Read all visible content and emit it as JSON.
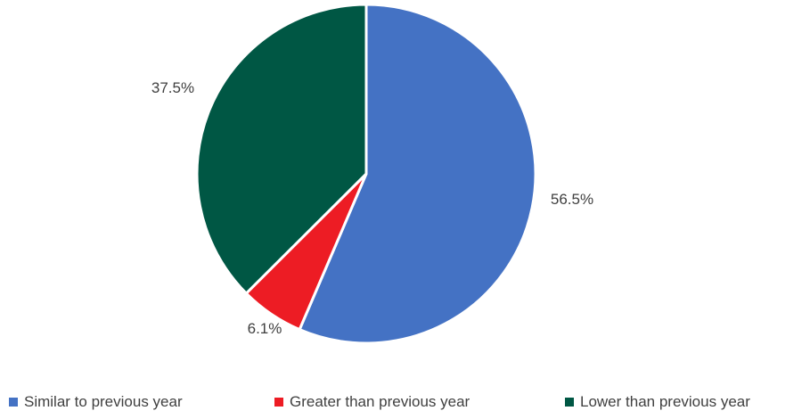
{
  "chart_data": {
    "type": "pie",
    "title": "",
    "categories": [
      "Similar to previous year",
      "Greater than previous year",
      "Lower than previous year"
    ],
    "values": [
      56.5,
      6.1,
      37.5
    ],
    "value_labels": [
      "56.5%",
      "6.1%",
      "37.5%"
    ],
    "colors": [
      "#4472C4",
      "#ED1C24",
      "#005744"
    ],
    "start_angle_deg": 0,
    "direction": "clockwise",
    "legend_position": "bottom"
  }
}
